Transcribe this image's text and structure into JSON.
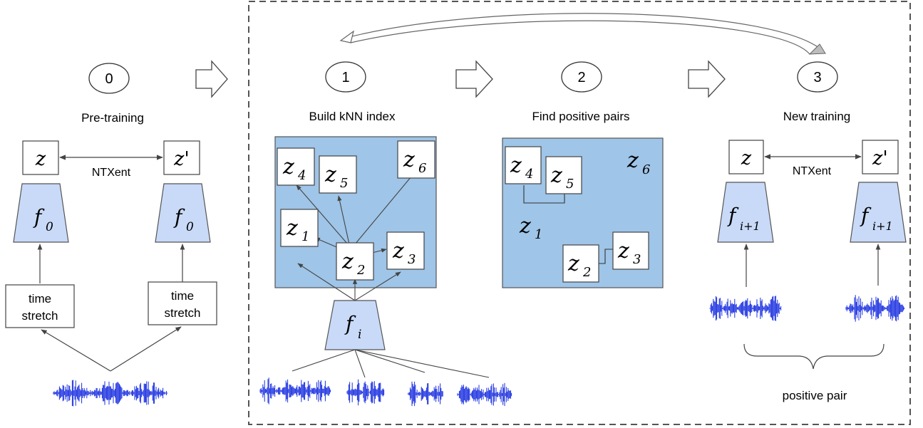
{
  "steps": [
    {
      "number": "0",
      "title": "Pre-training"
    },
    {
      "number": "1",
      "title": "Build kNN index"
    },
    {
      "number": "2",
      "title": "Find positive pairs"
    },
    {
      "number": "3",
      "title": "New training"
    }
  ],
  "pretraining": {
    "embedding_left": "z",
    "embedding_right": "z'",
    "loss": "NTXent",
    "encoder": "f",
    "encoder_sub": "0",
    "augment_line1": "time",
    "augment_line2": "stretch"
  },
  "knn_index": {
    "embeddings": [
      {
        "base": "z",
        "sub": "4"
      },
      {
        "base": "z",
        "sub": "5"
      },
      {
        "base": "z",
        "sub": "6"
      },
      {
        "base": "z",
        "sub": "1"
      },
      {
        "base": "z",
        "sub": "2"
      },
      {
        "base": "z",
        "sub": "3"
      }
    ],
    "encoder": "f",
    "encoder_sub": "i"
  },
  "positive_pairs": {
    "embeddings": [
      {
        "base": "z",
        "sub": "4"
      },
      {
        "base": "z",
        "sub": "5"
      },
      {
        "base": "z",
        "sub": "6"
      },
      {
        "base": "z",
        "sub": "1"
      },
      {
        "base": "z",
        "sub": "2"
      },
      {
        "base": "z",
        "sub": "3"
      }
    ]
  },
  "new_training": {
    "embedding_left": "z",
    "embedding_right": "z'",
    "loss": "NTXent",
    "encoder": "f",
    "encoder_sub": "i+1",
    "pair_label": "positive pair"
  },
  "colors": {
    "panel_fill": "#9fc5e8",
    "encoder_fill": "#c9daf8",
    "waveform": "#1a2fe0",
    "stroke": "#555555"
  }
}
